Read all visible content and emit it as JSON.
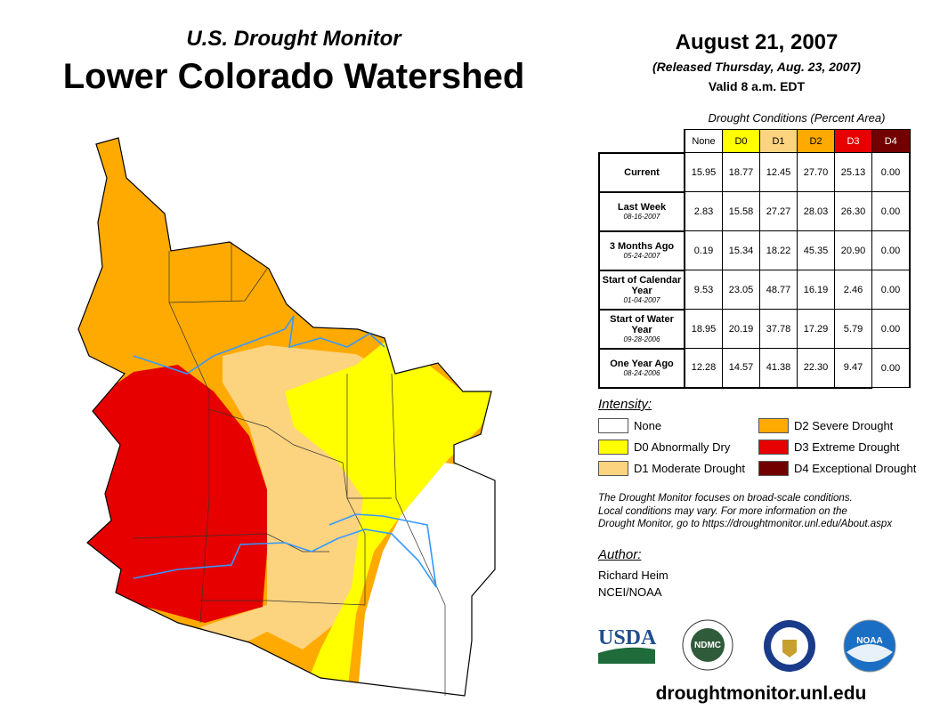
{
  "header": {
    "subtitle": "U.S. Drought Monitor",
    "title": "Lower Colorado Watershed",
    "date": "August 21, 2007",
    "released": "(Released Thursday, Aug. 23, 2007)",
    "valid": "Valid 8 a.m. EDT"
  },
  "table": {
    "caption": "Drought Conditions (Percent Area)",
    "columns": [
      "None",
      "D0",
      "D1",
      "D2",
      "D3",
      "D4"
    ],
    "column_colors": [
      "#ffffff",
      "#ffff00",
      "#fcd37f",
      "#ffaa00",
      "#e60000",
      "#730000"
    ],
    "rows": [
      {
        "label": "Current",
        "date": "",
        "values": [
          "15.95",
          "18.77",
          "12.45",
          "27.70",
          "25.13",
          "0.00"
        ]
      },
      {
        "label": "Last Week",
        "date": "08-16-2007",
        "values": [
          "2.83",
          "15.58",
          "27.27",
          "28.03",
          "26.30",
          "0.00"
        ]
      },
      {
        "label": "3 Months Ago",
        "date": "05-24-2007",
        "values": [
          "0.19",
          "15.34",
          "18.22",
          "45.35",
          "20.90",
          "0.00"
        ]
      },
      {
        "label": "Start of Calendar Year",
        "date": "01-04-2007",
        "values": [
          "9.53",
          "23.05",
          "48.77",
          "16.19",
          "2.46",
          "0.00"
        ]
      },
      {
        "label": "Start of Water Year",
        "date": "09-28-2006",
        "values": [
          "18.95",
          "20.19",
          "37.78",
          "17.29",
          "5.79",
          "0.00"
        ]
      },
      {
        "label": "One Year Ago",
        "date": "08-24-2006",
        "values": [
          "12.28",
          "14.57",
          "41.38",
          "22.30",
          "9.47",
          "0.00"
        ]
      }
    ]
  },
  "legend": {
    "title": "Intensity:",
    "items": [
      {
        "label": "None",
        "color": "#ffffff"
      },
      {
        "label": "D0 Abnormally Dry",
        "color": "#ffff00"
      },
      {
        "label": "D1 Moderate Drought",
        "color": "#fcd37f"
      },
      {
        "label": "D2 Severe Drought",
        "color": "#ffaa00"
      },
      {
        "label": "D3 Extreme Drought",
        "color": "#e60000"
      },
      {
        "label": "D4 Exceptional Drought",
        "color": "#730000"
      }
    ]
  },
  "note": [
    "The Drought Monitor focuses on broad-scale conditions.",
    "Local conditions may vary. For more information on the",
    "Drought Monitor, go to https://droughtmonitor.unl.edu/About.aspx"
  ],
  "author": {
    "title": "Author:",
    "name": "Richard Heim",
    "org": "NCEI/NOAA"
  },
  "logos": [
    "USDA",
    "NDMC",
    "NOAA"
  ],
  "footer_url": "droughtmonitor.unl.edu"
}
